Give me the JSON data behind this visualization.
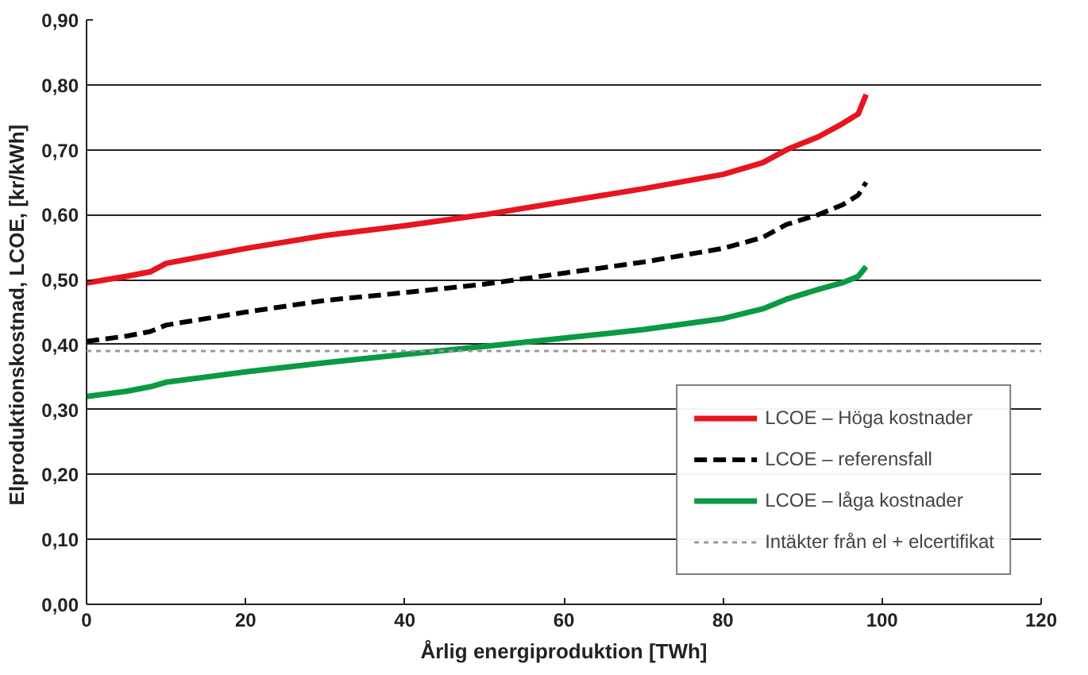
{
  "chart_data": {
    "type": "line",
    "xlabel": "Årlig energiproduktion [TWh]",
    "ylabel": "Elproduktionskostnad, LCOE,  [kr/kWh]",
    "x": [
      0,
      5,
      8,
      10,
      20,
      30,
      40,
      50,
      60,
      70,
      80,
      85,
      88,
      92,
      95,
      97,
      98
    ],
    "series": [
      {
        "name": "LCOE – Höga kostnader",
        "color": "#e8141e",
        "line_style": "solid",
        "values": [
          0.495,
          0.505,
          0.512,
          0.525,
          0.548,
          0.568,
          0.583,
          0.6,
          0.62,
          0.64,
          0.662,
          0.68,
          0.7,
          0.72,
          0.74,
          0.755,
          0.785
        ]
      },
      {
        "name": "LCOE – referensfall",
        "color": "#000000",
        "line_style": "dashed",
        "values": [
          0.405,
          0.413,
          0.42,
          0.43,
          0.45,
          0.468,
          0.48,
          0.493,
          0.51,
          0.527,
          0.548,
          0.565,
          0.585,
          0.6,
          0.615,
          0.63,
          0.65
        ]
      },
      {
        "name": "LCOE – låga kostnader",
        "color": "#0a9a42",
        "line_style": "solid",
        "values": [
          0.32,
          0.328,
          0.335,
          0.342,
          0.358,
          0.372,
          0.385,
          0.397,
          0.41,
          0.423,
          0.44,
          0.455,
          0.47,
          0.485,
          0.495,
          0.505,
          0.52
        ]
      }
    ],
    "ref_lines": [
      {
        "axis": "y",
        "value": 0.39,
        "label": "Intäkter från el + elcertifikat",
        "color": "#999999",
        "line_style": "dotted"
      }
    ],
    "xlim": [
      0,
      120
    ],
    "xticks": [
      0,
      20,
      40,
      60,
      80,
      100,
      120
    ],
    "ylim": [
      0,
      0.9
    ],
    "yticks": [
      {
        "value": 0,
        "label": "0,00"
      },
      {
        "value": 0.1,
        "label": "0,10"
      },
      {
        "value": 0.2,
        "label": "0,20"
      },
      {
        "value": 0.3,
        "label": "0,30"
      },
      {
        "value": 0.4,
        "label": "0,40"
      },
      {
        "value": 0.5,
        "label": "0,50"
      },
      {
        "value": 0.6,
        "label": "0,60"
      },
      {
        "value": 0.7,
        "label": "0,70"
      },
      {
        "value": 0.8,
        "label": "0,80"
      },
      {
        "value": 0.9,
        "label": "0,90"
      }
    ],
    "grid": "y",
    "legend": "bottom right"
  }
}
